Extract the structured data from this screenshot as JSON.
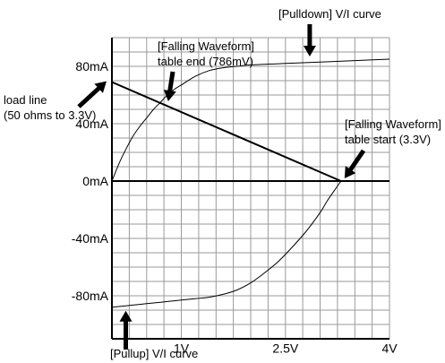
{
  "chart_data": {
    "type": "line",
    "xlim": [
      0,
      4
    ],
    "ylim": [
      -110,
      100
    ],
    "x_unit": "V",
    "y_unit": "mA",
    "grid": true,
    "x_ticks": [
      {
        "value": 1,
        "label": "1V"
      },
      {
        "value": 2.5,
        "label": "2.5V"
      },
      {
        "value": 4,
        "label": "4V"
      }
    ],
    "y_ticks": [
      {
        "value": 80,
        "label": "80mA"
      },
      {
        "value": 40,
        "label": "40mA"
      },
      {
        "value": 0,
        "label": "0mA"
      },
      {
        "value": -40,
        "label": "-40mA"
      },
      {
        "value": -80,
        "label": "-80mA"
      }
    ],
    "series": [
      {
        "name": "[Pulldown] V/I curve",
        "x": [
          0,
          0.1,
          0.2,
          0.3,
          0.4,
          0.5,
          0.6,
          0.7,
          0.8,
          0.9,
          1.0,
          1.2,
          1.4,
          1.6,
          1.8,
          2.0,
          2.5,
          3.0,
          3.5,
          4.0
        ],
        "y": [
          0,
          12,
          22,
          31,
          38,
          44,
          50,
          55,
          60,
          64,
          67,
          73,
          77,
          79,
          80,
          81,
          82,
          83,
          84,
          85
        ]
      },
      {
        "name": "[Pullup] V/I curve",
        "x": [
          0,
          0.2,
          0.4,
          0.6,
          0.8,
          1.0,
          1.2,
          1.4,
          1.6,
          1.8,
          2.0,
          2.2,
          2.4,
          2.6,
          2.8,
          3.0,
          3.1,
          3.2,
          3.3
        ],
        "y": [
          -88,
          -87,
          -86,
          -85,
          -84,
          -83,
          -82,
          -81,
          -79,
          -76,
          -71,
          -64,
          -56,
          -46,
          -35,
          -22,
          -14,
          -7,
          0
        ]
      },
      {
        "name": "load line (50 ohms to 3.3V)",
        "x": [
          0,
          3.3
        ],
        "y": [
          69,
          0
        ]
      }
    ],
    "annotations": [
      {
        "label": "[Pulldown] V/I curve",
        "x": 2.85,
        "y": 85
      },
      {
        "label": "[Falling Waveform] table end (786mV)",
        "x": 0.786,
        "y": 52.5
      },
      {
        "label": "load line (50 ohms to 3.3V)",
        "x": 0,
        "y": 69
      },
      {
        "label": "[Falling Waveform] table start (3.3V)",
        "x": 3.3,
        "y": 0
      },
      {
        "label": "[Pullup] V/I curve",
        "x": 0.2,
        "y": -88
      }
    ]
  },
  "labels": {
    "pulldown": [
      "[Pulldown] V/I curve"
    ],
    "table_end": [
      "[Falling Waveform]",
      "table end (786mV)"
    ],
    "load_line": [
      "load line",
      "(50 ohms to 3.3V)"
    ],
    "table_start": [
      "[Falling Waveform]",
      "table start (3.3V)"
    ],
    "pullup": [
      "[Pullup] V/I curve"
    ]
  }
}
